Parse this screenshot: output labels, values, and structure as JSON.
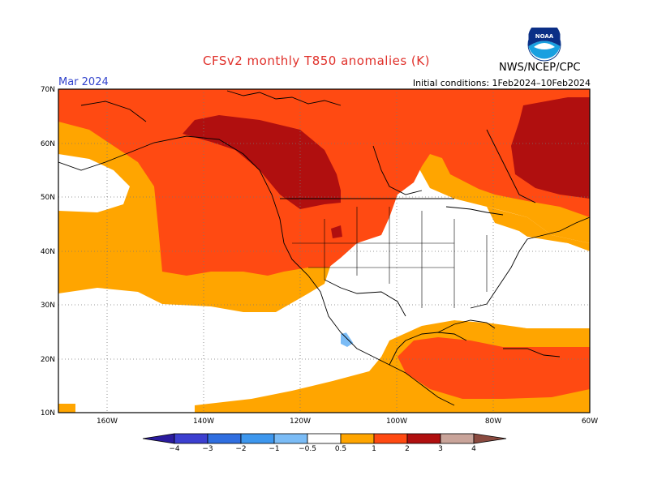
{
  "header": {
    "title": "CFSv2 monthly T850 anomalies (K)",
    "month": "Mar 2024",
    "initial_conditions": "Initial conditions: 1Feb2024–10Feb2024",
    "agency": "NWS/NCEP/CPC",
    "logo_text": "NOAA"
  },
  "map": {
    "lat_labels": [
      "70N",
      "60N",
      "50N",
      "40N",
      "30N",
      "20N",
      "10N"
    ],
    "lon_labels": [
      "160W",
      "140W",
      "120W",
      "100W",
      "80W",
      "60W"
    ],
    "extent": {
      "lon_min": -170,
      "lon_max": -60,
      "lat_min": 10,
      "lat_max": 70
    }
  },
  "colorbar": {
    "labels": [
      "−4",
      "−3",
      "−2",
      "−1",
      "−0.5",
      "0.5",
      "1",
      "2",
      "3",
      "4"
    ],
    "colors": [
      "#2a1b9e",
      "#3c3fd0",
      "#2f6ee0",
      "#3d97ee",
      "#7bbcf6",
      "#ffffff",
      "#ffa500",
      "#ff4a12",
      "#b00f0f",
      "#c9a49a",
      "#8a4a3f"
    ]
  }
}
